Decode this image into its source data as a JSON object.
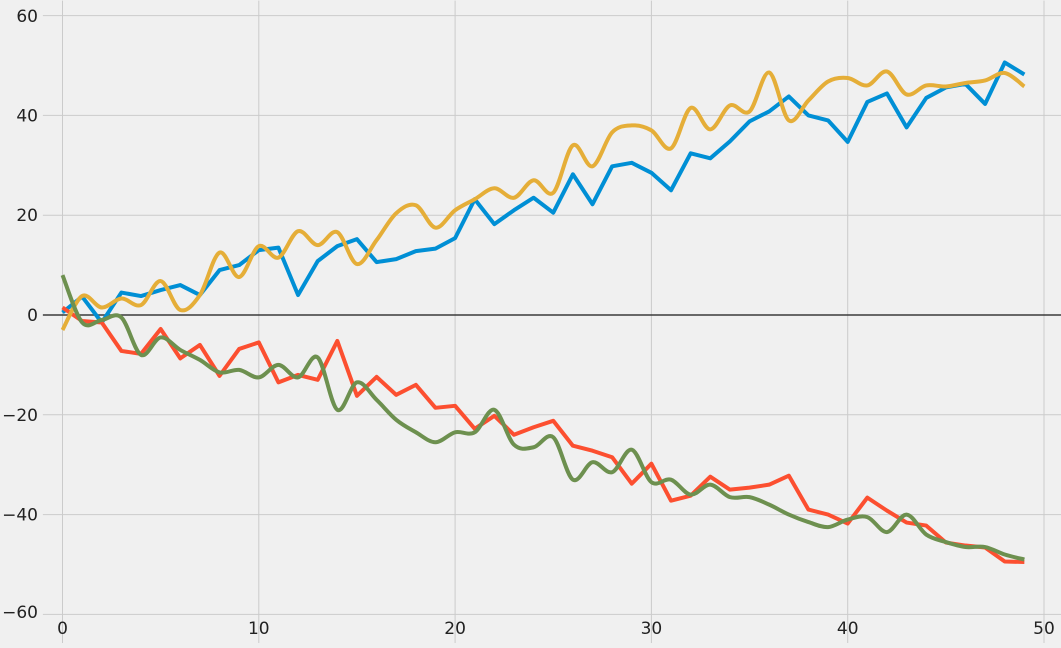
{
  "chart_data": {
    "type": "line",
    "title": "",
    "xlabel": "",
    "ylabel": "",
    "xlim": [
      -1,
      50
    ],
    "ylim": [
      -60,
      60
    ],
    "x_ticks": [
      "0",
      "10",
      "20",
      "30",
      "40",
      "50"
    ],
    "y_ticks": [
      "60",
      "40",
      "20",
      "0",
      "−20",
      "−40",
      "−60"
    ],
    "grid": true,
    "legend": "none",
    "zero_line": true,
    "colors": {
      "background": "#f0f0f0",
      "grid": "#cbcbcb",
      "zero_line": "#3a3a3a",
      "series": [
        "#008fd5",
        "#fc4f30",
        "#e5ae38",
        "#6d904f"
      ]
    },
    "series": [
      {
        "values": [
          0.5,
          3.7,
          -1.5,
          4.5,
          3.8,
          5.0,
          6.0,
          4.0,
          9.0,
          10.0,
          13.0,
          13.5,
          4.0,
          10.8,
          13.8,
          15.2,
          10.6,
          11.2,
          12.8,
          13.3,
          15.4,
          23.2,
          18.2,
          21.0,
          23.5,
          20.5,
          28.2,
          22.2,
          29.8,
          30.5,
          28.5,
          25.0,
          32.4,
          31.4,
          34.8,
          38.8,
          40.8,
          43.8,
          40.0,
          39.0,
          34.7,
          42.7,
          44.4,
          37.6,
          43.5,
          45.6,
          46.3,
          42.3,
          50.6,
          48.2
        ]
      },
      {
        "values": [
          1.5,
          -1.2,
          -1.5,
          -7.2,
          -7.8,
          -2.8,
          -8.7,
          -6.0,
          -12.2,
          -6.8,
          -5.5,
          -13.5,
          -12.0,
          -13.0,
          -5.2,
          -16.2,
          -12.4,
          -16.0,
          -14.0,
          -18.6,
          -18.2,
          -22.8,
          -20.2,
          -24.0,
          -22.5,
          -21.2,
          -26.2,
          -27.2,
          -28.5,
          -33.8,
          -29.8,
          -37.2,
          -36.2,
          -32.4,
          -35.0,
          -34.6,
          -34.0,
          -32.2,
          -39.0,
          -40.0,
          -41.8,
          -36.6,
          -39.2,
          -41.6,
          -42.2,
          -45.6,
          -46.2,
          -46.6,
          -49.4,
          -49.5
        ]
      },
      {
        "values": [
          -3.0,
          3.8,
          1.5,
          3.3,
          2.0,
          6.8,
          1.0,
          4.0,
          12.5,
          7.6,
          13.8,
          11.5,
          16.8,
          14.0,
          16.6,
          10.2,
          15.0,
          20.4,
          22.0,
          17.5,
          21.0,
          23.2,
          25.4,
          23.5,
          27.0,
          24.5,
          34.0,
          29.8,
          36.6,
          38.0,
          37.0,
          33.4,
          41.5,
          37.2,
          42.0,
          40.8,
          48.6,
          39.0,
          43.0,
          46.8,
          47.5,
          46.0,
          48.8,
          44.2,
          46.0,
          45.8,
          46.5,
          47.0,
          48.5,
          45.8
        ]
      },
      {
        "values": [
          8.0,
          -1.5,
          -1.0,
          -0.5,
          -8.0,
          -4.5,
          -7.0,
          -9.0,
          -11.5,
          -11.0,
          -12.5,
          -10.0,
          -12.5,
          -8.5,
          -19.0,
          -13.5,
          -17.0,
          -21.0,
          -23.5,
          -25.5,
          -23.5,
          -23.5,
          -19.0,
          -26.0,
          -26.5,
          -24.5,
          -33.0,
          -29.5,
          -31.5,
          -27.0,
          -33.5,
          -33.0,
          -36.0,
          -34.0,
          -36.5,
          -36.5,
          -38.0,
          -40.0,
          -41.5,
          -42.5,
          -41.0,
          -40.5,
          -43.5,
          -40.0,
          -44.0,
          -45.5,
          -46.5,
          -46.5,
          -48.0,
          -49.0
        ]
      }
    ]
  }
}
